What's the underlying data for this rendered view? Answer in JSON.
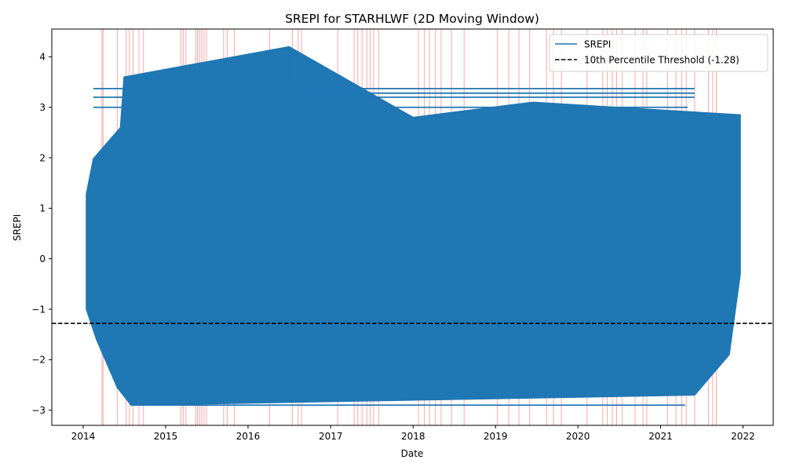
{
  "chart_data": {
    "type": "line",
    "title": "SREPI for STARHLWF (2D Moving Window)",
    "xlabel": "Date",
    "ylabel": "SREPI",
    "x_ticks": [
      "2014",
      "2015",
      "2016",
      "2017",
      "2018",
      "2019",
      "2020",
      "2021",
      "2022"
    ],
    "y_ticks": [
      "−3",
      "−2",
      "−1",
      "0",
      "1",
      "2",
      "3",
      "4"
    ],
    "xlim": [
      "2013-08-15",
      "2022-05-15"
    ],
    "ylim": [
      -3.3,
      4.55
    ],
    "grid": false,
    "legend_position": "top-right",
    "series": [
      {
        "name": "SREPI",
        "color": "#1f77b4",
        "dense_band": {
          "x_start": "2014-01-15",
          "x_end": "2021-12-20",
          "y_min": -2.9,
          "y_max": 4.2
        },
        "sample_points": [
          {
            "x": "2014-01-15",
            "y": 1.28
          },
          {
            "x": "2014-02-15",
            "y": 1.98
          },
          {
            "x": "2014-06-15",
            "y": 2.6
          },
          {
            "x": "2014-07-01",
            "y": 3.6
          },
          {
            "x": "2016-07-01",
            "y": 4.2
          },
          {
            "x": "2018-01-01",
            "y": 2.8
          },
          {
            "x": "2019-06-15",
            "y": 3.1
          },
          {
            "x": "2021-12-20",
            "y": 2.85
          },
          {
            "x": "2021-12-20",
            "y": -0.3
          },
          {
            "x": "2021-11-01",
            "y": -1.9
          },
          {
            "x": "2021-06-01",
            "y": -2.7
          },
          {
            "x": "2014-08-01",
            "y": -2.9
          },
          {
            "x": "2014-06-01",
            "y": -2.55
          },
          {
            "x": "2014-03-01",
            "y": -1.6
          },
          {
            "x": "2014-01-15",
            "y": -1.0
          }
        ]
      },
      {
        "name": "10th Percentile Threshold (-1.28)",
        "color": "#000000",
        "style": "dashed",
        "y": -1.28
      }
    ],
    "highlight_lines": {
      "color": "#ff0000",
      "dates": [
        "2014-03-25",
        "2014-03-30",
        "2014-06-01",
        "2014-07-10",
        "2014-07-25",
        "2014-08-10",
        "2014-09-05",
        "2014-09-25",
        "2015-03-10",
        "2015-03-20",
        "2015-04-01",
        "2015-05-15",
        "2015-05-22",
        "2015-06-01",
        "2015-06-10",
        "2015-06-20",
        "2015-07-01",
        "2015-09-15",
        "2015-10-01",
        "2015-11-01",
        "2016-04-05",
        "2016-07-15",
        "2016-08-10",
        "2016-08-25",
        "2017-02-01",
        "2017-04-15",
        "2017-05-01",
        "2017-05-20",
        "2017-06-10",
        "2017-06-25",
        "2017-07-10",
        "2017-08-01",
        "2018-01-25",
        "2018-02-20",
        "2018-03-15",
        "2018-04-10",
        "2018-05-05",
        "2018-06-20",
        "2018-08-15",
        "2019-01-10",
        "2019-03-01",
        "2019-04-15",
        "2019-06-01",
        "2019-08-15",
        "2019-09-15",
        "2019-10-20",
        "2020-02-10",
        "2020-04-20",
        "2020-05-10",
        "2020-06-01",
        "2020-06-20",
        "2020-07-15",
        "2020-09-10",
        "2020-10-15",
        "2020-11-01",
        "2021-02-01",
        "2021-03-10",
        "2021-04-05",
        "2021-04-25",
        "2021-06-01",
        "2021-08-01",
        "2021-08-20",
        "2021-09-05"
      ]
    }
  }
}
